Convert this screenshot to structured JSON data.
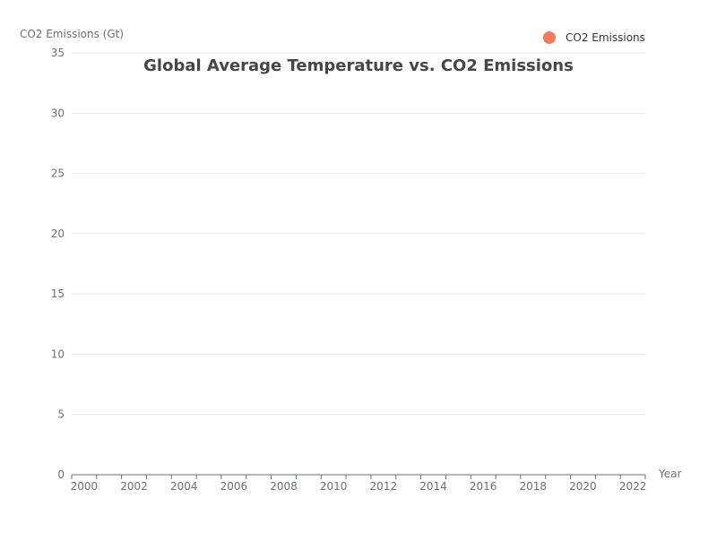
{
  "colors": {
    "series": "#f07c5c",
    "title": "#464646",
    "axis": "#6e7079",
    "grid": "#e0e6f1"
  },
  "chart_data": {
    "type": "scatter",
    "title": "Global Average Temperature vs. CO2 Emissions",
    "xlabel": "Year",
    "ylabel": "CO2 Emissions (Gt)",
    "xlim": [
      2000,
      2023
    ],
    "ylim": [
      0,
      35
    ],
    "x_ticks": [
      "2000",
      "2002",
      "2004",
      "2006",
      "2008",
      "2010",
      "2012",
      "2014",
      "2016",
      "2018",
      "2020",
      "2022"
    ],
    "y_ticks": [
      "0",
      "5",
      "10",
      "15",
      "20",
      "25",
      "30",
      "35"
    ],
    "grid": true,
    "legend_position": "top-right",
    "series": [
      {
        "name": "CO2 Emissions",
        "x": [],
        "y": []
      }
    ]
  }
}
